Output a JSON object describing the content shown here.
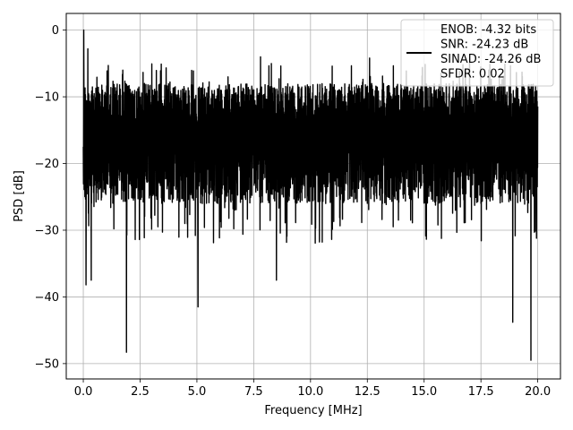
{
  "chart_data": {
    "type": "line",
    "xlabel": "Frequency [MHz]",
    "ylabel": "PSD [dB]",
    "xlim": [
      -0.75,
      21.0
    ],
    "ylim": [
      -52.3,
      2.5
    ],
    "xticks": [
      0.0,
      2.5,
      5.0,
      7.5,
      10.0,
      12.5,
      15.0,
      17.5,
      20.0
    ],
    "xtick_labels": [
      "0.0",
      "2.5",
      "5.0",
      "7.5",
      "10.0",
      "12.5",
      "15.0",
      "17.5",
      "20.0"
    ],
    "yticks": [
      0,
      -10,
      -20,
      -30,
      -40,
      -50
    ],
    "ytick_labels": [
      "0",
      "−10",
      "−20",
      "−30",
      "−40",
      "−50"
    ],
    "grid": true,
    "line_color": "#000000",
    "legend": {
      "placement": "upper right",
      "entries": [
        "ENOB: -4.32 bits",
        "SNR: -24.23 dB",
        "SINAD: -24.26 dB",
        "SFDR: 0.02"
      ]
    },
    "series": [
      {
        "x_range": [
          0.0,
          20.0
        ],
        "band_upper_db": -8,
        "band_lower_db": -24,
        "start_peak_db": 0,
        "notable_dips": [
          {
            "x": 0.12,
            "y": -38.2
          },
          {
            "x": 0.35,
            "y": -37.5
          },
          {
            "x": 1.9,
            "y": -48.3
          },
          {
            "x": 5.05,
            "y": -41.5
          },
          {
            "x": 8.5,
            "y": -37.5
          },
          {
            "x": 18.9,
            "y": -43.8
          },
          {
            "x": 19.7,
            "y": -49.5
          }
        ],
        "notable_peaks": [
          {
            "x": 0.02,
            "y": 0.0
          },
          {
            "x": 0.2,
            "y": -2.8
          },
          {
            "x": 1.1,
            "y": -5.3
          },
          {
            "x": 7.8,
            "y": -4.0
          },
          {
            "x": 12.6,
            "y": -4.2
          },
          {
            "x": 17.0,
            "y": -4.3
          }
        ]
      }
    ]
  }
}
